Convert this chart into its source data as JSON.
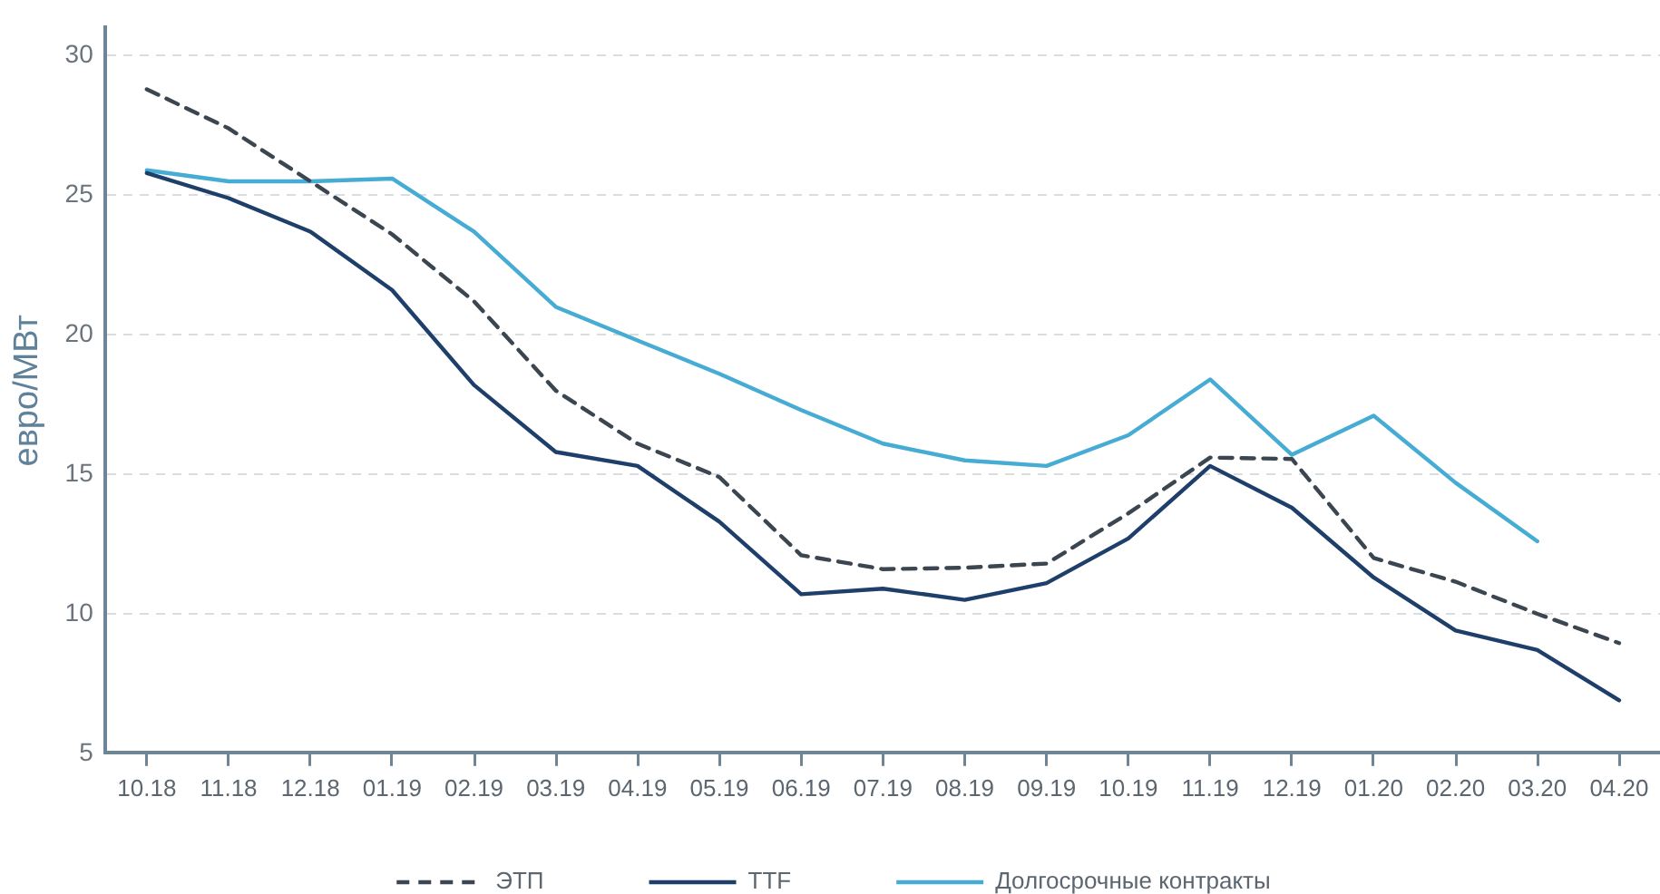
{
  "chart_data": {
    "type": "line",
    "ylabel": "евро/МВт",
    "categories": [
      "10.18",
      "11.18",
      "12.18",
      "01.19",
      "02.19",
      "03.19",
      "04.19",
      "05.19",
      "06.19",
      "07.19",
      "08.19",
      "09.19",
      "10.19",
      "11.19",
      "12.19",
      "01.20",
      "02.20",
      "03.20",
      "04.20"
    ],
    "series": [
      {
        "name": "ЭТП",
        "color": "#3b4650",
        "line_style": "dashed",
        "values": [
          28.8,
          27.4,
          25.5,
          23.6,
          21.2,
          18.0,
          16.1,
          14.9,
          12.1,
          11.6,
          11.65,
          11.8,
          13.6,
          15.6,
          15.55,
          12.0,
          11.15,
          10.0,
          8.95
        ]
      },
      {
        "name": "TTF",
        "color": "#1f3f6b",
        "line_style": "solid",
        "values": [
          25.8,
          24.9,
          23.7,
          21.6,
          18.2,
          15.8,
          15.3,
          13.3,
          10.7,
          10.9,
          10.5,
          11.1,
          12.7,
          15.3,
          13.8,
          11.3,
          9.4,
          8.7,
          6.9
        ]
      },
      {
        "name": "Долгосрочные контракты",
        "color": "#46acd4",
        "line_style": "solid",
        "values": [
          25.9,
          25.5,
          25.5,
          25.6,
          23.7,
          21.0,
          19.8,
          18.6,
          17.3,
          16.1,
          15.5,
          15.3,
          16.4,
          18.4,
          15.7,
          17.1,
          14.7,
          12.6,
          null
        ]
      }
    ],
    "ylim": [
      5,
      31
    ],
    "yticks": [
      5,
      10,
      15,
      20,
      25,
      30
    ],
    "grid": "y",
    "legend": "bottom"
  }
}
